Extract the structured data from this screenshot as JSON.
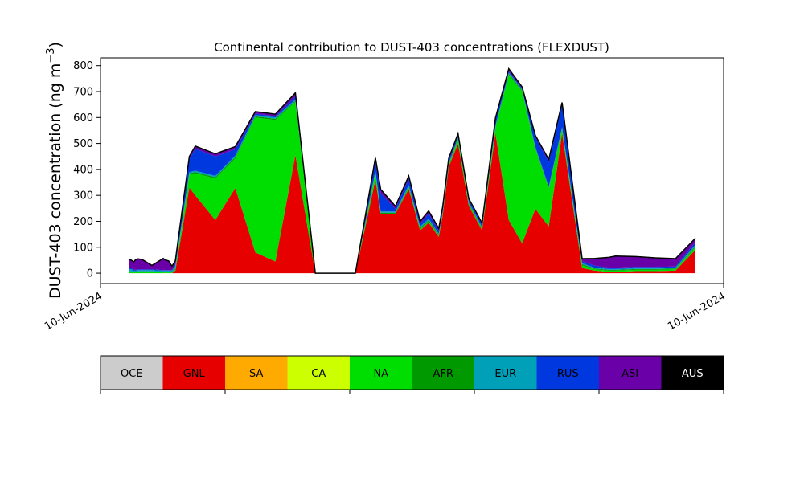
{
  "chart_data": {
    "type": "area",
    "title": "Continental contribution to DUST-403 concentrations (FLEXDUST)",
    "ylabel": "DUST-403 concentration (ng m",
    "ylabel_sup": "−3",
    "ylabel_close": ")",
    "xlabel": "",
    "x_tick_labels": [
      "10-Jun-2024",
      "10-Jun-2024"
    ],
    "yticks": [
      0,
      100,
      200,
      300,
      400,
      500,
      600,
      700,
      800
    ],
    "ylim": [
      -40,
      830
    ],
    "stacked": true,
    "x": [
      0.0,
      0.4,
      0.8,
      1.0,
      1.4,
      2.0,
      3.5,
      5.2,
      5.4,
      6.0,
      6.5,
      7.0,
      9.1,
      10.0,
      13.0,
      16.0,
      19.0,
      22.0,
      25.0,
      28.0,
      30.0,
      34.0,
      37.0,
      37.8,
      40.0,
      42.0,
      43.7,
      45.0,
      46.5,
      47.1,
      48.0,
      49.4,
      51.0,
      53.0,
      55.0,
      57.0,
      59.0,
      61.0,
      63.0,
      65.0,
      68.0,
      69.9,
      72.0,
      73.0,
      76.0,
      79.0,
      82.0,
      85.0
    ],
    "series": [
      {
        "name": "GNL",
        "color": "#e60000",
        "values": [
          0,
          0,
          0,
          0,
          0,
          0,
          0,
          0,
          0,
          0,
          0,
          10,
          330,
          300,
          205,
          328,
          80,
          45,
          455,
          0,
          0,
          0,
          360,
          228,
          228,
          325,
          165,
          195,
          140,
          225,
          410,
          500,
          260,
          165,
          540,
          205,
          115,
          248,
          180,
          540,
          20,
          10,
          5,
          5,
          8,
          8,
          10,
          90
        ]
      },
      {
        "name": "NA",
        "color": "#00dd00",
        "values": [
          5,
          5,
          3,
          3,
          5,
          5,
          5,
          3,
          3,
          3,
          3,
          5,
          50,
          85,
          160,
          115,
          520,
          545,
          205,
          0,
          0,
          0,
          25,
          0,
          0,
          5,
          5,
          5,
          5,
          5,
          5,
          15,
          5,
          5,
          20,
          560,
          585,
          230,
          145,
          15,
          10,
          5,
          5,
          5,
          5,
          5,
          5,
          10
        ]
      },
      {
        "name": "AFR",
        "color": "#009a00",
        "values": [
          2,
          2,
          2,
          2,
          2,
          2,
          2,
          2,
          2,
          2,
          2,
          3,
          5,
          5,
          5,
          5,
          5,
          5,
          5,
          0,
          0,
          0,
          5,
          5,
          5,
          5,
          5,
          5,
          5,
          5,
          5,
          5,
          5,
          5,
          5,
          5,
          5,
          5,
          5,
          5,
          5,
          3,
          3,
          3,
          3,
          3,
          3,
          5
        ]
      },
      {
        "name": "EUR",
        "color": "#00a0b8",
        "values": [
          8,
          8,
          5,
          5,
          5,
          5,
          5,
          5,
          5,
          5,
          5,
          10,
          5,
          5,
          5,
          5,
          5,
          5,
          5,
          0,
          0,
          0,
          5,
          5,
          5,
          5,
          5,
          5,
          3,
          3,
          3,
          3,
          3,
          3,
          3,
          3,
          3,
          3,
          3,
          3,
          3,
          3,
          3,
          3,
          3,
          3,
          3,
          5
        ]
      },
      {
        "name": "RUS",
        "color": "#0038e0",
        "values": [
          5,
          5,
          3,
          3,
          3,
          3,
          3,
          2,
          2,
          2,
          2,
          5,
          50,
          85,
          75,
          25,
          5,
          5,
          10,
          0,
          0,
          0,
          35,
          70,
          10,
          25,
          10,
          20,
          10,
          10,
          10,
          10,
          10,
          10,
          25,
          5,
          5,
          40,
          95,
          85,
          8,
          8,
          5,
          5,
          5,
          5,
          5,
          10
        ]
      },
      {
        "name": "ASI",
        "color": "#6a00a8",
        "values": [
          35,
          30,
          30,
          38,
          40,
          38,
          15,
          45,
          40,
          35,
          15,
          15,
          10,
          10,
          10,
          10,
          8,
          8,
          15,
          0,
          0,
          0,
          15,
          15,
          10,
          10,
          10,
          10,
          10,
          10,
          10,
          5,
          5,
          5,
          5,
          10,
          5,
          5,
          10,
          10,
          10,
          28,
          40,
          45,
          40,
          35,
          30,
          15
        ]
      },
      {
        "name": "AUS",
        "color": "#000000",
        "values": [
          0,
          0,
          0,
          0,
          0,
          0,
          0,
          0,
          0,
          0,
          0,
          0,
          0,
          0,
          0,
          0,
          0,
          0,
          0,
          0,
          0,
          0,
          0,
          0,
          0,
          0,
          0,
          0,
          0,
          0,
          0,
          0,
          0,
          0,
          0,
          0,
          0,
          0,
          0,
          0,
          0,
          0,
          0,
          0,
          0,
          0,
          0,
          0
        ]
      }
    ],
    "legend": {
      "placement": "bottom",
      "items": [
        {
          "label": "OCE",
          "color": "#cccccc",
          "text_color": "#000000"
        },
        {
          "label": "GNL",
          "color": "#e60000",
          "text_color": "#000000"
        },
        {
          "label": "SA",
          "color": "#ffaa00",
          "text_color": "#000000"
        },
        {
          "label": "CA",
          "color": "#ccff00",
          "text_color": "#000000"
        },
        {
          "label": "NA",
          "color": "#00dd00",
          "text_color": "#000000"
        },
        {
          "label": "AFR",
          "color": "#009a00",
          "text_color": "#000000"
        },
        {
          "label": "EUR",
          "color": "#00a0b8",
          "text_color": "#000000"
        },
        {
          "label": "RUS",
          "color": "#0038e0",
          "text_color": "#000000"
        },
        {
          "label": "ASI",
          "color": "#6a00a8",
          "text_color": "#000000"
        },
        {
          "label": "AUS",
          "color": "#000000",
          "text_color": "#ffffff"
        }
      ]
    },
    "grid": false
  }
}
